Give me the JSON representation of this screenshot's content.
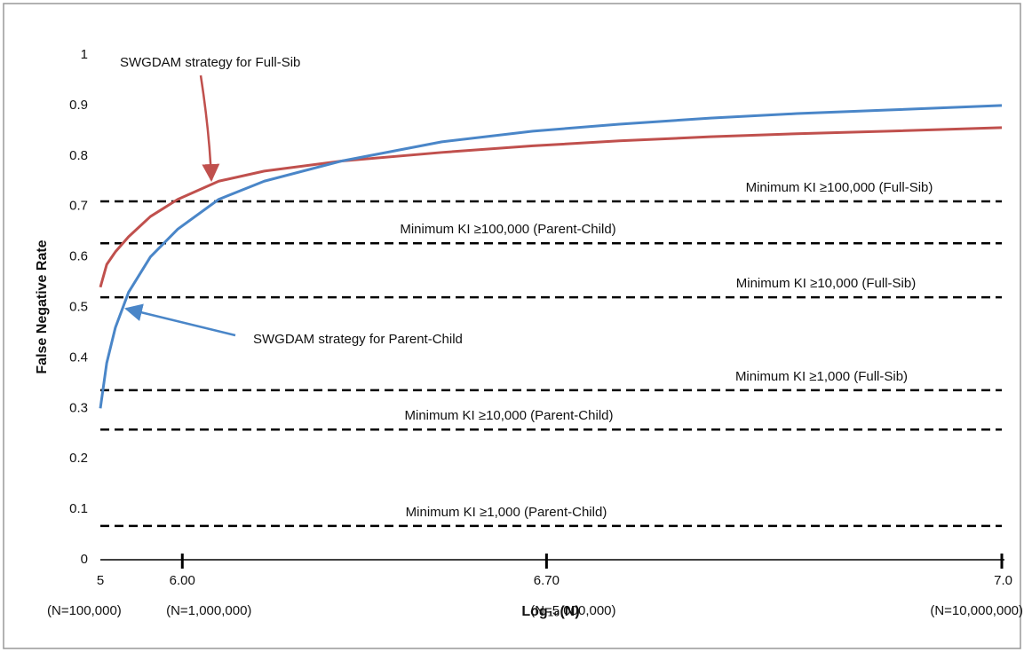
{
  "chart_data": {
    "type": "line",
    "ylabel": "False Negative Rate",
    "xlabel": "Log₁₀(N)",
    "x": [
      100000,
      170000,
      265000,
      410000,
      650000,
      950000,
      1400000,
      1900000,
      2750000,
      3850000,
      4850000,
      5800000,
      6800000,
      7750000,
      8750000,
      10000000
    ],
    "series": [
      {
        "name": "SWGDAM strategy for Full-Sib",
        "color": "#c0504d",
        "values": [
          0.54,
          0.585,
          0.61,
          0.64,
          0.68,
          0.714,
          0.75,
          0.77,
          0.79,
          0.807,
          0.82,
          0.83,
          0.838,
          0.844,
          0.849,
          0.856
        ]
      },
      {
        "name": "SWGDAM strategy for Parent-Child",
        "color": "#4a86c8",
        "values": [
          0.3,
          0.39,
          0.46,
          0.53,
          0.6,
          0.655,
          0.714,
          0.75,
          0.79,
          0.828,
          0.849,
          0.863,
          0.875,
          0.884,
          0.891,
          0.9
        ]
      }
    ],
    "reference_lines": [
      {
        "label": "Minimum KI ≥100,000 (Full-Sib)",
        "value": 0.71
      },
      {
        "label": "Minimum KI ≥100,000 (Parent-Child)",
        "value": 0.627
      },
      {
        "label": "Minimum KI ≥10,000 (Full-Sib)",
        "value": 0.52
      },
      {
        "label": "Minimum KI ≥1,000 (Full-Sib)",
        "value": 0.336
      },
      {
        "label": "Minimum KI ≥10,000 (Parent-Child)",
        "value": 0.258
      },
      {
        "label": "Minimum KI ≥1,000 (Parent-Child)",
        "value": 0.067
      }
    ],
    "xlim": [
      100000,
      10000000
    ],
    "xticks": [
      {
        "value": 100000,
        "label": [
          "5",
          "(N=100,000)"
        ]
      },
      {
        "value": 1000000,
        "label": [
          "6.00",
          "(N=1,000,000)"
        ]
      },
      {
        "value": 5000000,
        "label": [
          "6.70",
          "(N=5,000,000)"
        ]
      },
      {
        "value": 10000000,
        "label": [
          "7.0",
          "(N=10,000,000)"
        ]
      }
    ],
    "ylim": [
      0,
      1
    ],
    "yticks": [
      0,
      0.1,
      0.2,
      0.3,
      0.4,
      0.5,
      0.6,
      0.7,
      0.8,
      0.9,
      1
    ],
    "grid": false
  }
}
